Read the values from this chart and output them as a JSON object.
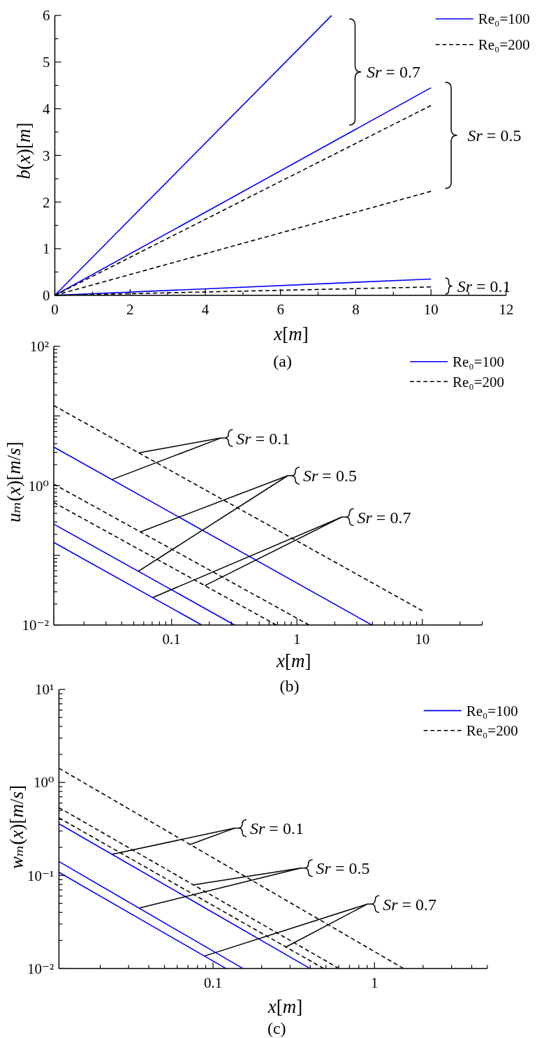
{
  "chart_data": [
    {
      "type": "line",
      "title": "(a)",
      "xlabel": "x[m]",
      "ylabel": "b(x)[m]",
      "xlim": [
        0,
        12
      ],
      "ylim": [
        0,
        6
      ],
      "xticks": [
        0,
        {
          "value": 1,
          "label": null
        },
        2,
        {
          "value": 3,
          "label": null
        },
        4,
        {
          "value": 5,
          "label": null
        },
        6,
        {
          "value": 7,
          "label": null
        },
        8,
        {
          "value": 9,
          "label": null
        },
        10,
        {
          "value": 11,
          "label": null
        },
        12
      ],
      "yticks": [
        0,
        {
          "value": 0.5,
          "label": null
        },
        1,
        {
          "value": 1.5,
          "label": null
        },
        2,
        {
          "value": 2.5,
          "label": null
        },
        3,
        {
          "value": 3.5,
          "label": null
        },
        4,
        {
          "value": 4.5,
          "label": null
        },
        5,
        {
          "value": 5.5,
          "label": null
        },
        6
      ],
      "legend": "top right",
      "annotations": [
        "Sr = 0.7",
        "Sr = 0.5",
        "Sr = 0.1"
      ],
      "series": [
        {
          "name": "Re₀=100",
          "color": "#0000ff",
          "line_style": "solid",
          "x": [
            0,
            10
          ],
          "values": [
            0,
            0.35
          ]
        },
        {
          "name": "Re₀=200",
          "color": "#000000",
          "line_style": "dashed",
          "x": [
            0,
            10
          ],
          "values": [
            0,
            0.18
          ]
        },
        {
          "color": "#0000ff",
          "line_style": "solid",
          "x": [
            0,
            10
          ],
          "values": [
            0,
            4.45
          ]
        },
        {
          "color": "#000000",
          "line_style": "dashed",
          "x": [
            0,
            10
          ],
          "values": [
            0,
            2.23
          ]
        },
        {
          "color": "#0000ff",
          "line_style": "solid",
          "x": [
            0,
            7.36
          ],
          "values": [
            0,
            6
          ]
        },
        {
          "color": "#000000",
          "line_style": "dashed",
          "x": [
            0,
            10
          ],
          "values": [
            0,
            4.07
          ]
        }
      ]
    },
    {
      "type": "line",
      "title": "(b)",
      "xlabel": "x[m]",
      "ylabel": "uₘ(x)[m/s]",
      "log": "xy",
      "xlim": [
        0.0115,
        30
      ],
      "ylim": [
        0.01,
        100
      ],
      "xticks": [
        {
          "value": 0.02,
          "label": null
        },
        {
          "value": 0.03,
          "label": null
        },
        {
          "value": 0.04,
          "label": null
        },
        {
          "value": 0.05,
          "label": null
        },
        {
          "value": 0.06,
          "label": null
        },
        {
          "value": 0.07,
          "label": null
        },
        {
          "value": 0.08,
          "label": null
        },
        {
          "value": 0.09,
          "label": null
        },
        0.1,
        {
          "value": 0.2,
          "label": null
        },
        {
          "value": 0.3,
          "label": null
        },
        {
          "value": 0.4,
          "label": null
        },
        {
          "value": 0.5,
          "label": null
        },
        {
          "value": 0.6,
          "label": null
        },
        {
          "value": 0.7,
          "label": null
        },
        {
          "value": 0.8,
          "label": null
        },
        {
          "value": 0.9,
          "label": null
        },
        1,
        {
          "value": 2,
          "label": null
        },
        {
          "value": 3,
          "label": null
        },
        {
          "value": 4,
          "label": null
        },
        {
          "value": 5,
          "label": null
        },
        {
          "value": 6,
          "label": null
        },
        {
          "value": 7,
          "label": null
        },
        {
          "value": 8,
          "label": null
        },
        {
          "value": 9,
          "label": null
        },
        10,
        {
          "value": 20,
          "label": null
        },
        {
          "value": 30,
          "label": null
        }
      ],
      "yticks": [
        {
          "value": 0.01,
          "label": "10⁻²"
        },
        {
          "value": 0.02,
          "label": null
        },
        {
          "value": 0.03,
          "label": null
        },
        {
          "value": 0.04,
          "label": null
        },
        {
          "value": 0.05,
          "label": null
        },
        {
          "value": 0.06,
          "label": null
        },
        {
          "value": 0.07,
          "label": null
        },
        {
          "value": 0.08,
          "label": null
        },
        {
          "value": 0.09,
          "label": null
        },
        {
          "value": 0.1,
          "label": null
        },
        {
          "value": 0.2,
          "label": null
        },
        {
          "value": 0.3,
          "label": null
        },
        {
          "value": 0.4,
          "label": null
        },
        {
          "value": 0.5,
          "label": null
        },
        {
          "value": 0.6,
          "label": null
        },
        {
          "value": 0.7,
          "label": null
        },
        {
          "value": 0.8,
          "label": null
        },
        {
          "value": 0.9,
          "label": null
        },
        {
          "value": 1,
          "label": "10⁰"
        },
        {
          "value": 2,
          "label": null
        },
        {
          "value": 3,
          "label": null
        },
        {
          "value": 4,
          "label": null
        },
        {
          "value": 5,
          "label": null
        },
        {
          "value": 6,
          "label": null
        },
        {
          "value": 7,
          "label": null
        },
        {
          "value": 8,
          "label": null
        },
        {
          "value": 9,
          "label": null
        },
        {
          "value": 10,
          "label": null
        },
        {
          "value": 20,
          "label": null
        },
        {
          "value": 30,
          "label": null
        },
        {
          "value": 40,
          "label": null
        },
        {
          "value": 50,
          "label": null
        },
        {
          "value": 60,
          "label": null
        },
        {
          "value": 70,
          "label": null
        },
        {
          "value": 80,
          "label": null
        },
        {
          "value": 90,
          "label": null
        },
        {
          "value": 100,
          "label": "10²"
        }
      ],
      "legend": "top right",
      "annotations": [
        {
          "text": "Sr = 0.1",
          "x": 0.0334,
          "y": 1.22
        },
        {
          "text": "Sr = 0.5",
          "x": 0.0543,
          "y": 0.059
        },
        {
          "text": "Sr = 0.7",
          "x": 0.0708,
          "y": 0.0247
        }
      ],
      "series": [
        {
          "name": "Re₀=100",
          "color": "#0000ff",
          "line_style": "solid",
          "x": [
            0.0115,
            3.95
          ],
          "values": [
            3.58,
            0.01
          ]
        },
        {
          "name": "Re₀=200",
          "color": "#000000",
          "line_style": "dashed",
          "x": [
            0.0115,
            10
          ],
          "values": [
            14.1,
            0.016
          ]
        },
        {
          "color": "#0000ff",
          "line_style": "solid",
          "x": [
            0.0115,
            0.318
          ],
          "values": [
            0.28,
            0.01
          ]
        },
        {
          "color": "#000000",
          "line_style": "dashed",
          "x": [
            0.0115,
            1.25
          ],
          "values": [
            1.05,
            0.01
          ]
        },
        {
          "color": "#0000ff",
          "line_style": "solid",
          "x": [
            0.0115,
            0.174
          ],
          "values": [
            0.153,
            0.01
          ]
        },
        {
          "color": "#000000",
          "line_style": "dashed",
          "x": [
            0.0115,
            0.684
          ],
          "values": [
            0.573,
            0.01
          ]
        }
      ]
    },
    {
      "type": "line",
      "title": "(c)",
      "xlabel": "x[m]",
      "ylabel": "wₘ(x)[m/s]",
      "log": "xy",
      "xlim": [
        0.0111,
        5
      ],
      "ylim": [
        0.01,
        10
      ],
      "xticks": [
        {
          "value": 0.02,
          "label": null
        },
        {
          "value": 0.03,
          "label": null
        },
        {
          "value": 0.04,
          "label": null
        },
        {
          "value": 0.05,
          "label": null
        },
        {
          "value": 0.06,
          "label": null
        },
        {
          "value": 0.07,
          "label": null
        },
        {
          "value": 0.08,
          "label": null
        },
        {
          "value": 0.09,
          "label": null
        },
        0.1,
        {
          "value": 0.2,
          "label": null
        },
        {
          "value": 0.3,
          "label": null
        },
        {
          "value": 0.4,
          "label": null
        },
        {
          "value": 0.5,
          "label": null
        },
        {
          "value": 0.6,
          "label": null
        },
        {
          "value": 0.7,
          "label": null
        },
        {
          "value": 0.8,
          "label": null
        },
        {
          "value": 0.9,
          "label": null
        },
        1,
        {
          "value": 2,
          "label": null
        },
        {
          "value": 3,
          "label": null
        },
        {
          "value": 4,
          "label": null
        },
        {
          "value": 5,
          "label": null
        }
      ],
      "yticks": [
        {
          "value": 0.01,
          "label": "10⁻²"
        },
        {
          "value": 0.02,
          "label": null
        },
        {
          "value": 0.03,
          "label": null
        },
        {
          "value": 0.04,
          "label": null
        },
        {
          "value": 0.05,
          "label": null
        },
        {
          "value": 0.06,
          "label": null
        },
        {
          "value": 0.07,
          "label": null
        },
        {
          "value": 0.08,
          "label": null
        },
        {
          "value": 0.09,
          "label": null
        },
        {
          "value": 0.1,
          "label": "10⁻¹"
        },
        {
          "value": 0.2,
          "label": null
        },
        {
          "value": 0.3,
          "label": null
        },
        {
          "value": 0.4,
          "label": null
        },
        {
          "value": 0.5,
          "label": null
        },
        {
          "value": 0.6,
          "label": null
        },
        {
          "value": 0.7,
          "label": null
        },
        {
          "value": 0.8,
          "label": null
        },
        {
          "value": 0.9,
          "label": null
        },
        {
          "value": 1,
          "label": "10⁰"
        },
        {
          "value": 2,
          "label": null
        },
        {
          "value": 3,
          "label": null
        },
        {
          "value": 4,
          "label": null
        },
        {
          "value": 5,
          "label": null
        },
        {
          "value": 6,
          "label": null
        },
        {
          "value": 7,
          "label": null
        },
        {
          "value": 8,
          "label": null
        },
        {
          "value": 9,
          "label": null
        },
        {
          "value": 10,
          "label": "10¹"
        }
      ],
      "legend": "top right",
      "annotations": [
        {
          "text": "Sr = 0.1",
          "x": 0.0237,
          "y": 0.169
        },
        {
          "text": "Sr = 0.5",
          "x": 0.0352,
          "y": 0.0448
        },
        {
          "text": "Sr = 0.7",
          "x": 0.0886,
          "y": 0.0136
        }
      ],
      "series": [
        {
          "name": "Re₀=100",
          "color": "#0000ff",
          "line_style": "solid",
          "x": [
            0.0111,
            0.398
          ],
          "values": [
            0.36,
            0.01
          ]
        },
        {
          "name": "Re₀=200",
          "color": "#000000",
          "line_style": "dashed",
          "x": [
            0.0111,
            1.51
          ],
          "values": [
            1.42,
            0.01
          ]
        },
        {
          "color": "#0000ff",
          "line_style": "solid",
          "x": [
            0.0111,
            0.153
          ],
          "values": [
            0.141,
            0.01
          ]
        },
        {
          "color": "#000000",
          "line_style": "dashed",
          "x": [
            0.0111,
            0.602
          ],
          "values": [
            0.536,
            0.01
          ]
        },
        {
          "color": "#0000ff",
          "line_style": "solid",
          "x": [
            0.0111,
            0.12
          ],
          "values": [
            0.108,
            0.01
          ]
        },
        {
          "color": "#000000",
          "line_style": "dashed",
          "x": [
            0.0111,
            0.484
          ],
          "values": [
            0.416,
            0.01
          ]
        }
      ]
    }
  ]
}
